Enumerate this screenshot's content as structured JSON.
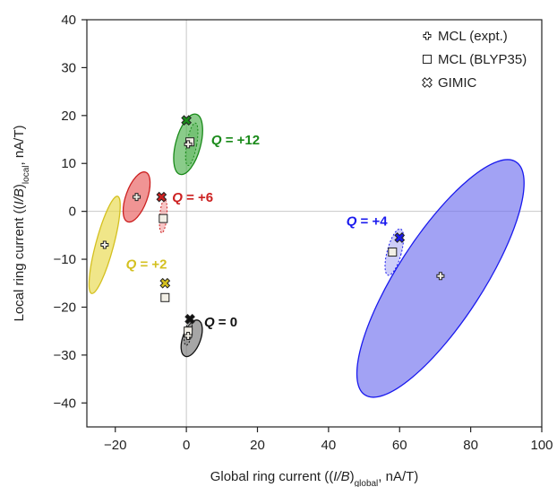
{
  "chart_data": {
    "type": "scatter",
    "xlabel": {
      "prefix": "Global ring current ((",
      "italic": "I/B",
      "sub": "global",
      "suffix": ", nA/T)"
    },
    "ylabel": {
      "prefix": "Local ring current ((",
      "italic": "I/B",
      "sub": "local",
      "suffix": ", nA/T)"
    },
    "xlim": [
      -28,
      100
    ],
    "ylim": [
      -45,
      40
    ],
    "xticks": [
      -20,
      0,
      20,
      40,
      60,
      80,
      100
    ],
    "yticks": [
      -40,
      -30,
      -20,
      -10,
      0,
      10,
      20,
      30,
      40
    ],
    "xtick_labels": [
      "−20",
      "0",
      "20",
      "40",
      "60",
      "80",
      "100"
    ],
    "ytick_labels": [
      "−40",
      "−30",
      "−20",
      "−10",
      "0",
      "10",
      "20",
      "30",
      "40"
    ],
    "zero_lines": true,
    "legend": {
      "position": "top-right",
      "entries": [
        {
          "marker": "plus",
          "label": "MCL (expt.)"
        },
        {
          "marker": "square",
          "label": "MCL (BLYP35)"
        },
        {
          "marker": "cross",
          "label": "GIMIC"
        }
      ]
    },
    "groups": [
      {
        "label_prefix": "Q",
        "label_suffix": " = +12",
        "label_x": 7,
        "label_y": 14,
        "color": "#1a8a1a",
        "fill": "#4cb04c",
        "expt": [
          0.5,
          14
        ],
        "blyp35": [
          1,
          14.5
        ],
        "gimic": [
          0,
          19
        ],
        "ellipse_expt": {
          "center": [
            0.5,
            14
          ],
          "rx": 3.5,
          "ry": 6.5,
          "angle": 15
        },
        "ellipse_calc": {
          "center": [
            1.5,
            14
          ],
          "rx": 1.4,
          "ry": 4.5,
          "angle": 10
        }
      },
      {
        "label_prefix": "Q",
        "label_suffix": " = +6",
        "label_x": -4,
        "label_y": 2,
        "color": "#cc2020",
        "fill": "#e85a5a",
        "expt": [
          -14,
          3
        ],
        "blyp35": [
          -6.5,
          -1.5
        ],
        "gimic": [
          -7,
          3
        ],
        "ellipse_expt": {
          "center": [
            -14,
            3
          ],
          "rx": 3,
          "ry": 5.5,
          "angle": 20
        },
        "ellipse_calc": {
          "center": [
            -6.5,
            -1
          ],
          "rx": 1,
          "ry": 3.5,
          "angle": 5
        }
      },
      {
        "label_prefix": "Q",
        "label_suffix": " = +2",
        "label_x": -17,
        "label_y": -12,
        "color": "#d4c020",
        "fill": "#e8d84a",
        "expt": [
          -23,
          -7
        ],
        "blyp35": [
          -6,
          -18
        ],
        "gimic": [
          -6,
          -15
        ],
        "ellipse_expt": {
          "center": [
            -23,
            -7
          ],
          "rx": 2.5,
          "ry": 10.5,
          "angle": 15
        },
        "ellipse_calc": null
      },
      {
        "label_prefix": "Q",
        "label_suffix": " = 0",
        "label_x": 5,
        "label_y": -24,
        "color": "#111111",
        "fill": "#777777",
        "expt": [
          0.5,
          -26
        ],
        "blyp35": [
          0.5,
          -25
        ],
        "gimic": [
          1,
          -22.5
        ],
        "ellipse_expt": {
          "center": [
            1.5,
            -26.5
          ],
          "rx": 2.5,
          "ry": 4,
          "angle": 20
        },
        "ellipse_calc": {
          "center": [
            0.5,
            -25.5
          ],
          "rx": 1,
          "ry": 2.5,
          "angle": 10
        }
      },
      {
        "label_prefix": "Q",
        "label_suffix": " = +4",
        "label_x": 45,
        "label_y": -3,
        "color": "#1a1aee",
        "fill": "#7070ee",
        "expt": [
          71.5,
          -13.5
        ],
        "blyp35": [
          58,
          -8.5
        ],
        "gimic": [
          60,
          -5.5
        ],
        "ellipse_expt": {
          "center": [
            71.5,
            -14
          ],
          "rx": 12,
          "ry": 29,
          "angle": 33
        },
        "ellipse_calc": {
          "center": [
            58.5,
            -8.5
          ],
          "rx": 2,
          "ry": 5,
          "angle": 15
        }
      }
    ]
  }
}
